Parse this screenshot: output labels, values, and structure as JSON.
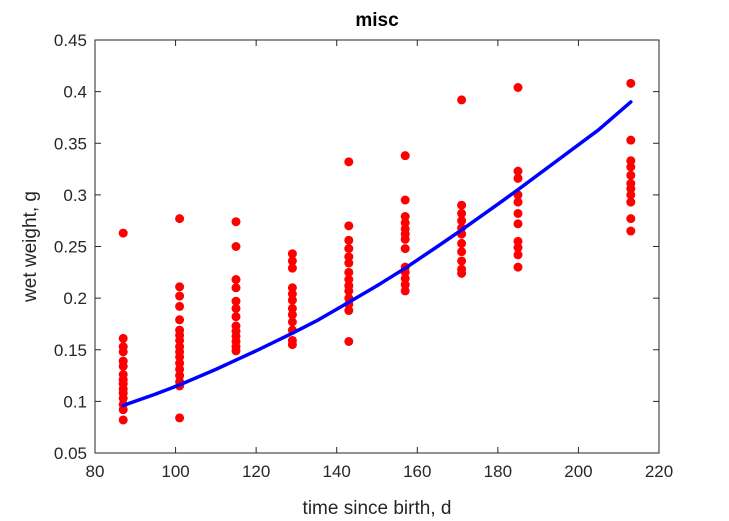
{
  "chart_data": {
    "type": "scatter",
    "title": "misc",
    "xlabel": "time since birth, d",
    "ylabel": "wet weight, g",
    "xlim": [
      80,
      220
    ],
    "ylim": [
      0.05,
      0.45
    ],
    "xticks": [
      80,
      100,
      120,
      140,
      160,
      180,
      200,
      220
    ],
    "yticks": [
      0.05,
      0.1,
      0.15,
      0.2,
      0.25,
      0.3,
      0.35,
      0.4,
      0.45
    ],
    "xtick_labels": [
      "80",
      "100",
      "120",
      "140",
      "160",
      "180",
      "200",
      "220"
    ],
    "ytick_labels": [
      "0.05",
      "0.1",
      "0.15",
      "0.2",
      "0.25",
      "0.3",
      "0.35",
      "0.4",
      "0.45"
    ],
    "grid": false,
    "series": [
      {
        "kind": "scatter",
        "color": "#ff0000",
        "points": [
          [
            87,
            0.263
          ],
          [
            87,
            0.161
          ],
          [
            87,
            0.153
          ],
          [
            87,
            0.148
          ],
          [
            87,
            0.139
          ],
          [
            87,
            0.134
          ],
          [
            87,
            0.126
          ],
          [
            87,
            0.121
          ],
          [
            87,
            0.117
          ],
          [
            87,
            0.112
          ],
          [
            87,
            0.108
          ],
          [
            87,
            0.103
          ],
          [
            87,
            0.097
          ],
          [
            87,
            0.092
          ],
          [
            87,
            0.082
          ],
          [
            101,
            0.277
          ],
          [
            101,
            0.211
          ],
          [
            101,
            0.202
          ],
          [
            101,
            0.192
          ],
          [
            101,
            0.179
          ],
          [
            101,
            0.169
          ],
          [
            101,
            0.164
          ],
          [
            101,
            0.159
          ],
          [
            101,
            0.153
          ],
          [
            101,
            0.148
          ],
          [
            101,
            0.143
          ],
          [
            101,
            0.137
          ],
          [
            101,
            0.131
          ],
          [
            101,
            0.125
          ],
          [
            101,
            0.119
          ],
          [
            101,
            0.115
          ],
          [
            101,
            0.084
          ],
          [
            115,
            0.274
          ],
          [
            115,
            0.25
          ],
          [
            115,
            0.218
          ],
          [
            115,
            0.21
          ],
          [
            115,
            0.197
          ],
          [
            115,
            0.19
          ],
          [
            115,
            0.182
          ],
          [
            115,
            0.173
          ],
          [
            115,
            0.168
          ],
          [
            115,
            0.163
          ],
          [
            115,
            0.158
          ],
          [
            115,
            0.153
          ],
          [
            115,
            0.149
          ],
          [
            129,
            0.243
          ],
          [
            129,
            0.236
          ],
          [
            129,
            0.229
          ],
          [
            129,
            0.21
          ],
          [
            129,
            0.204
          ],
          [
            129,
            0.198
          ],
          [
            129,
            0.19
          ],
          [
            129,
            0.184
          ],
          [
            129,
            0.177
          ],
          [
            129,
            0.169
          ],
          [
            129,
            0.159
          ],
          [
            129,
            0.155
          ],
          [
            143,
            0.332
          ],
          [
            143,
            0.27
          ],
          [
            143,
            0.256
          ],
          [
            143,
            0.248
          ],
          [
            143,
            0.24
          ],
          [
            143,
            0.234
          ],
          [
            143,
            0.225
          ],
          [
            143,
            0.218
          ],
          [
            143,
            0.212
          ],
          [
            143,
            0.207
          ],
          [
            143,
            0.2
          ],
          [
            143,
            0.194
          ],
          [
            143,
            0.188
          ],
          [
            143,
            0.158
          ],
          [
            157,
            0.338
          ],
          [
            157,
            0.295
          ],
          [
            157,
            0.279
          ],
          [
            157,
            0.273
          ],
          [
            157,
            0.267
          ],
          [
            157,
            0.262
          ],
          [
            157,
            0.257
          ],
          [
            157,
            0.248
          ],
          [
            157,
            0.23
          ],
          [
            157,
            0.225
          ],
          [
            157,
            0.219
          ],
          [
            157,
            0.213
          ],
          [
            157,
            0.207
          ],
          [
            171,
            0.392
          ],
          [
            171,
            0.29
          ],
          [
            171,
            0.282
          ],
          [
            171,
            0.275
          ],
          [
            171,
            0.268
          ],
          [
            171,
            0.262
          ],
          [
            171,
            0.253
          ],
          [
            171,
            0.245
          ],
          [
            171,
            0.236
          ],
          [
            171,
            0.228
          ],
          [
            171,
            0.224
          ],
          [
            185,
            0.404
          ],
          [
            185,
            0.323
          ],
          [
            185,
            0.316
          ],
          [
            185,
            0.3
          ],
          [
            185,
            0.293
          ],
          [
            185,
            0.282
          ],
          [
            185,
            0.272
          ],
          [
            185,
            0.255
          ],
          [
            185,
            0.249
          ],
          [
            185,
            0.242
          ],
          [
            185,
            0.23
          ],
          [
            213,
            0.408
          ],
          [
            213,
            0.353
          ],
          [
            213,
            0.333
          ],
          [
            213,
            0.327
          ],
          [
            213,
            0.319
          ],
          [
            213,
            0.311
          ],
          [
            213,
            0.306
          ],
          [
            213,
            0.3
          ],
          [
            213,
            0.293
          ],
          [
            213,
            0.277
          ],
          [
            213,
            0.265
          ]
        ]
      },
      {
        "kind": "line",
        "color": "#0000ff",
        "x": [
          87,
          95,
          101,
          110,
          115,
          120,
          129,
          135,
          143,
          150,
          157,
          165,
          171,
          180,
          185,
          195,
          205,
          213
        ],
        "y": [
          0.096,
          0.107,
          0.116,
          0.131,
          0.14,
          0.149,
          0.166,
          0.178,
          0.196,
          0.212,
          0.229,
          0.25,
          0.266,
          0.291,
          0.305,
          0.334,
          0.363,
          0.39
        ]
      }
    ]
  }
}
